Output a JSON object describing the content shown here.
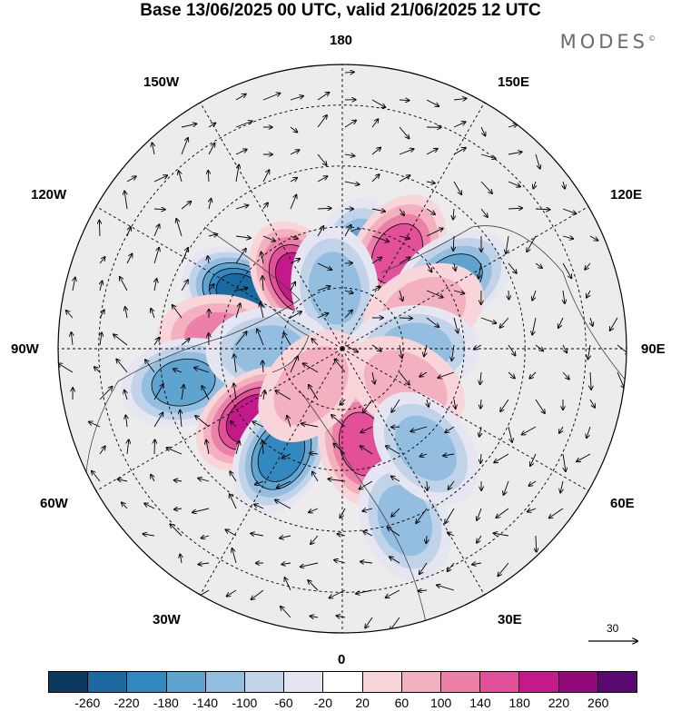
{
  "title": "Base 13/06/2025 00 UTC, valid 21/06/2025 12 UTC",
  "logo": "MODES",
  "logo_mark": "©",
  "longitude_labels": {
    "top": "180",
    "bottom": "0",
    "left": "90W",
    "right": "90E",
    "upper_left_1": "150W",
    "upper_left_2": "120W",
    "upper_right_1": "150E",
    "upper_right_2": "120E",
    "lower_left_1": "60W",
    "lower_left_2": "30W",
    "lower_right_1": "60E",
    "lower_right_2": "30E"
  },
  "vector_scale_label": "30",
  "colorbar": {
    "colors": [
      "#0b3a5e",
      "#1a6aa0",
      "#3488c0",
      "#5fa3cf",
      "#93bedf",
      "#c1d3e8",
      "#e5e6f1",
      "#ffffff",
      "#f8d5d8",
      "#f3b1bf",
      "#ec80a8",
      "#e2509a",
      "#c4198a",
      "#900a7a",
      "#5a0a6e"
    ],
    "tick_labels": [
      "-260",
      "-220",
      "-180",
      "-140",
      "-100",
      "-60",
      "-20",
      "20",
      "60",
      "100",
      "140",
      "180",
      "220",
      "260"
    ]
  },
  "anomaly_centers": [
    {
      "lat": 62,
      "lon": -118,
      "value": -240
    },
    {
      "lat": 70,
      "lon": -148,
      "value": 180
    },
    {
      "lat": 68,
      "lon": 170,
      "value": -140
    },
    {
      "lat": 63,
      "lon": 150,
      "value": 160
    },
    {
      "lat": 75,
      "lon": -173,
      "value": -120
    },
    {
      "lat": 58,
      "lon": 122,
      "value": -150
    },
    {
      "lat": 68,
      "lon": 115,
      "value": 80
    },
    {
      "lat": 60,
      "lon": -95,
      "value": 120
    },
    {
      "lat": 50,
      "lon": -78,
      "value": -150
    },
    {
      "lat": 72,
      "lon": -88,
      "value": -110
    },
    {
      "lat": 62,
      "lon": -52,
      "value": 190
    },
    {
      "lat": 60,
      "lon": -30,
      "value": -200
    },
    {
      "lat": 66,
      "lon": 12,
      "value": 170
    },
    {
      "lat": 45,
      "lon": 20,
      "value": -110
    },
    {
      "lat": 72,
      "lon": 90,
      "value": -120
    },
    {
      "lat": 72,
      "lon": 60,
      "value": 80
    },
    {
      "lat": 58,
      "lon": 40,
      "value": -100
    },
    {
      "lat": 78,
      "lon": -40,
      "value": 90
    }
  ]
}
